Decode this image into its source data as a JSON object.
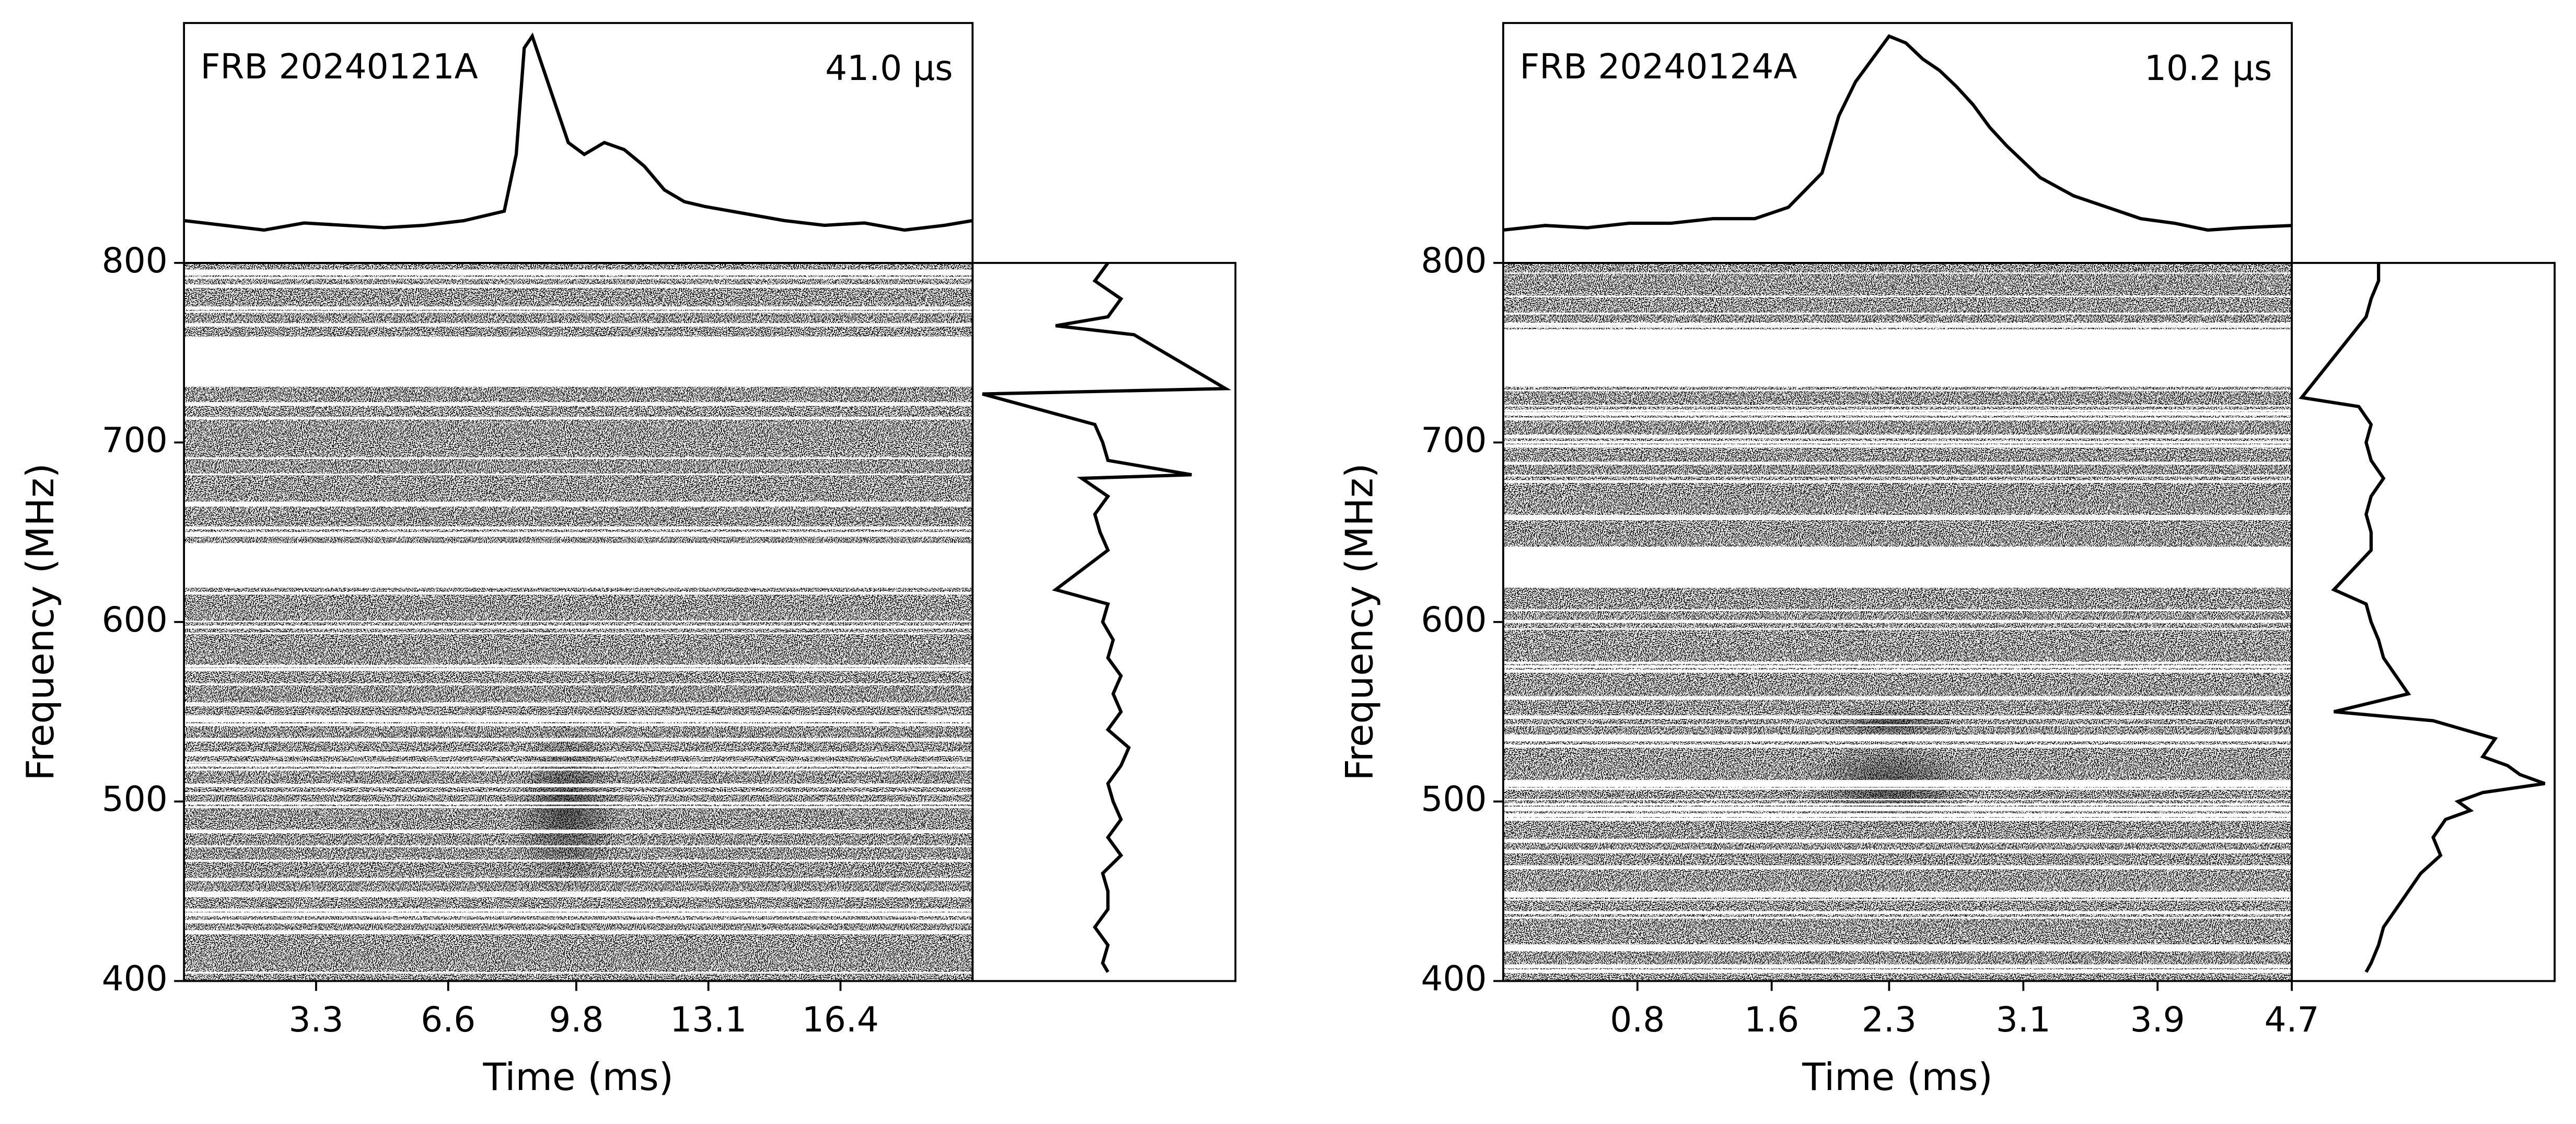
{
  "chart_data": [
    {
      "type": "waterfall",
      "title": "FRB 20240121A",
      "annotation": "41.0 μs",
      "xlabel": "Time (ms)",
      "ylabel": "Frequency (MHz)",
      "xlim": [
        0,
        19.7
      ],
      "xticks": [
        3.3,
        6.6,
        9.8,
        13.1,
        16.4
      ],
      "ylim": [
        400,
        800
      ],
      "yticks": [
        400,
        500,
        600,
        700,
        800
      ],
      "masked": [
        [
          731,
          759
        ],
        [
          619,
          644
        ]
      ],
      "profile": {
        "x": [
          0,
          1,
          2,
          3,
          4,
          5,
          6,
          7,
          7.5,
          8,
          8.3,
          8.5,
          8.7,
          9,
          9.3,
          9.6,
          10,
          10.5,
          11,
          11.5,
          12,
          12.5,
          13,
          14,
          15,
          16,
          17,
          18,
          19,
          19.7
        ],
        "values": [
          0.22,
          0.2,
          0.18,
          0.21,
          0.2,
          0.19,
          0.2,
          0.22,
          0.24,
          0.26,
          0.5,
          0.95,
          1.0,
          0.85,
          0.7,
          0.55,
          0.5,
          0.55,
          0.52,
          0.45,
          0.35,
          0.3,
          0.28,
          0.25,
          0.22,
          0.2,
          0.21,
          0.18,
          0.2,
          0.22
        ]
      },
      "spectrum": {
        "frequency": [
          800,
          790,
          780,
          770,
          765,
          760,
          730,
          727,
          710,
          700,
          690,
          682,
          680,
          670,
          660,
          650,
          640,
          618,
          610,
          600,
          590,
          580,
          570,
          560,
          550,
          540,
          530,
          520,
          510,
          500,
          490,
          480,
          470,
          460,
          450,
          440,
          430,
          420,
          410,
          405
        ],
        "values": [
          0.5,
          0.45,
          0.55,
          0.5,
          0.3,
          0.6,
          0.95,
          0.02,
          0.45,
          0.48,
          0.5,
          0.82,
          0.4,
          0.5,
          0.45,
          0.47,
          0.5,
          0.3,
          0.5,
          0.48,
          0.52,
          0.5,
          0.55,
          0.52,
          0.55,
          0.5,
          0.58,
          0.55,
          0.5,
          0.52,
          0.55,
          0.5,
          0.55,
          0.48,
          0.5,
          0.5,
          0.45,
          0.5,
          0.48,
          0.5
        ]
      }
    },
    {
      "type": "waterfall",
      "title": "FRB 20240124A",
      "annotation": "10.2 μs",
      "xlabel": "Time (ms)",
      "ylabel": "Frequency (MHz)",
      "xlim": [
        0,
        4.7
      ],
      "xticks": [
        0.8,
        1.6,
        2.3,
        3.1,
        3.9,
        4.7
      ],
      "ylim": [
        400,
        800
      ],
      "yticks": [
        400,
        500,
        600,
        700,
        800
      ],
      "masked": [
        [
          731,
          763
        ],
        [
          619,
          642
        ]
      ],
      "profile": {
        "x": [
          0,
          0.25,
          0.5,
          0.75,
          1,
          1.25,
          1.5,
          1.7,
          1.9,
          2.0,
          2.1,
          2.2,
          2.3,
          2.4,
          2.5,
          2.6,
          2.7,
          2.8,
          2.9,
          3.0,
          3.1,
          3.2,
          3.4,
          3.6,
          3.8,
          4.0,
          4.2,
          4.4,
          4.7
        ],
        "values": [
          0.15,
          0.17,
          0.16,
          0.18,
          0.18,
          0.2,
          0.2,
          0.25,
          0.4,
          0.65,
          0.8,
          0.9,
          1.0,
          0.97,
          0.9,
          0.85,
          0.78,
          0.7,
          0.6,
          0.52,
          0.45,
          0.38,
          0.3,
          0.25,
          0.2,
          0.18,
          0.15,
          0.16,
          0.17
        ]
      },
      "spectrum": {
        "frequency": [
          800,
          790,
          780,
          770,
          725,
          720,
          710,
          700,
          690,
          680,
          670,
          660,
          650,
          640,
          618,
          610,
          600,
          590,
          580,
          570,
          560,
          550,
          545,
          535,
          525,
          520,
          515,
          510,
          505,
          500,
          495,
          490,
          480,
          470,
          460,
          450,
          440,
          430,
          420,
          410,
          405
        ],
        "values": [
          0.33,
          0.33,
          0.3,
          0.28,
          0.02,
          0.25,
          0.3,
          0.28,
          0.3,
          0.35,
          0.3,
          0.28,
          0.3,
          0.3,
          0.15,
          0.28,
          0.3,
          0.33,
          0.35,
          0.4,
          0.45,
          0.15,
          0.55,
          0.8,
          0.75,
          0.85,
          0.9,
          1.0,
          0.75,
          0.65,
          0.7,
          0.6,
          0.55,
          0.58,
          0.5,
          0.45,
          0.4,
          0.35,
          0.33,
          0.3,
          0.28
        ]
      }
    }
  ]
}
